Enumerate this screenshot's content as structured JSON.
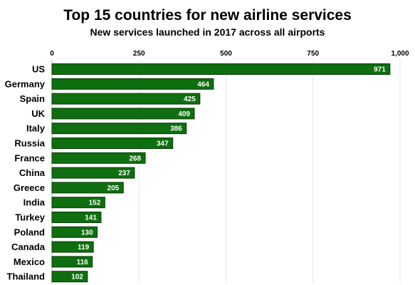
{
  "chart_data": {
    "type": "bar",
    "orientation": "horizontal",
    "title": "Top 15 countries for new airline services",
    "subtitle": "New services launched in 2017 across all airports",
    "xlabel": "",
    "ylabel": "",
    "xlim": [
      0,
      1000
    ],
    "x_ticks": [
      0,
      250,
      500,
      750,
      1000
    ],
    "x_tick_labels": [
      "0",
      "250",
      "500",
      "750",
      "1,000"
    ],
    "x_axis_position": "top",
    "grid": true,
    "legend": "none",
    "bar_color": "#0f6e0f",
    "bar_border_color": "#063d06",
    "categories": [
      "US",
      "Germany",
      "Spain",
      "UK",
      "Italy",
      "Russia",
      "France",
      "China",
      "Greece",
      "India",
      "Turkey",
      "Poland",
      "Canada",
      "Mexico",
      "Thailand"
    ],
    "values": [
      971,
      464,
      425,
      409,
      386,
      347,
      268,
      237,
      205,
      152,
      141,
      130,
      119,
      116,
      102
    ],
    "data_labels": [
      "971",
      "464",
      "425",
      "409",
      "386",
      "347",
      "268",
      "237",
      "205",
      "152",
      "141",
      "130",
      "119",
      "116",
      "102"
    ]
  }
}
